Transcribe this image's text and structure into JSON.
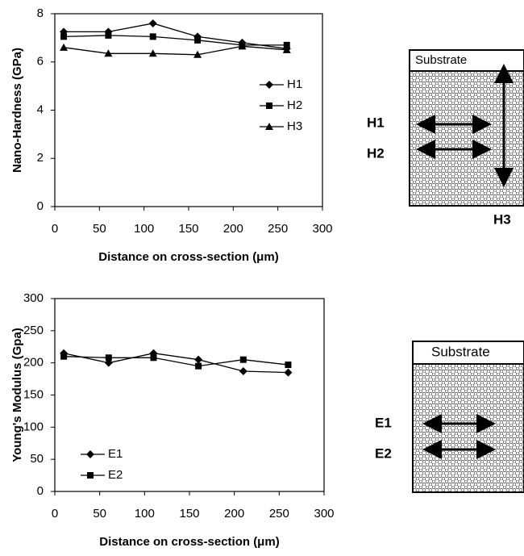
{
  "chart_data": [
    {
      "type": "line",
      "x_label": "Distance on cross-section (μm)",
      "y_label": "Nano-Hardness (GPa)",
      "x": [
        10,
        60,
        110,
        160,
        210,
        260
      ],
      "series": [
        {
          "name": "H1",
          "color": "#000000",
          "marker": "diamond",
          "values": [
            7.25,
            7.25,
            7.6,
            7.05,
            6.8,
            6.55
          ]
        },
        {
          "name": "H2",
          "color": "#000000",
          "marker": "square",
          "values": [
            7.05,
            7.1,
            7.05,
            6.9,
            6.7,
            6.7
          ]
        },
        {
          "name": "H3",
          "color": "#000000",
          "marker": "triangle",
          "values": [
            6.6,
            6.35,
            6.35,
            6.3,
            6.65,
            6.5
          ]
        }
      ],
      "xlim": [
        0,
        300
      ],
      "xticks": [
        0,
        50,
        100,
        150,
        200,
        250,
        300
      ],
      "ylim": [
        0,
        8
      ],
      "yticks": [
        0,
        2,
        4,
        6,
        8
      ],
      "grid": false,
      "legend": "center right"
    },
    {
      "type": "line",
      "x_label": "Distance on cross-section (μm)",
      "y_label": "Young's Modulus (Gpa)",
      "x": [
        10,
        60,
        110,
        160,
        210,
        260
      ],
      "series": [
        {
          "name": "E1",
          "color": "#000000",
          "marker": "diamond",
          "values": [
            215,
            200,
            215,
            205,
            187,
            185
          ]
        },
        {
          "name": "E2",
          "color": "#000000",
          "marker": "square",
          "values": [
            210,
            208,
            208,
            195,
            205,
            197
          ]
        }
      ],
      "xlim": [
        0,
        300
      ],
      "xticks": [
        0,
        50,
        100,
        150,
        200,
        250,
        300
      ],
      "ylim": [
        0,
        300
      ],
      "yticks": [
        0,
        50,
        100,
        150,
        200,
        250,
        300
      ],
      "grid": false,
      "legend": "lower left"
    }
  ],
  "diagrams": [
    {
      "substrate": "Substrate",
      "labels": [
        "H1",
        "H2",
        "H3"
      ]
    },
    {
      "substrate": "Substrate",
      "labels": [
        "E1",
        "E2"
      ]
    }
  ]
}
